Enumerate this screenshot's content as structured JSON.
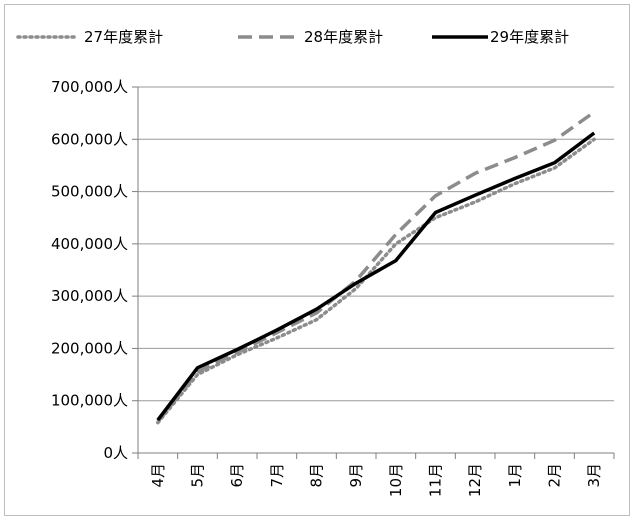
{
  "chart_data": {
    "type": "line",
    "categories": [
      "4月",
      "5月",
      "6月",
      "7月",
      "8月",
      "9月",
      "10月",
      "11月",
      "12月",
      "1月",
      "2月",
      "3月"
    ],
    "y_ticks": [
      "0人",
      "100,000人",
      "200,000人",
      "300,000人",
      "400,000人",
      "500,000人",
      "600,000人",
      "700,000人"
    ],
    "ylim": [
      0,
      700000
    ],
    "grid": true,
    "legend_position": "top",
    "series": [
      {
        "name": "27年度累計",
        "style": "dotted",
        "color": "#8c8c8c",
        "values": [
          58000,
          150000,
          188000,
          220000,
          255000,
          315000,
          400000,
          450000,
          480000,
          515000,
          545000,
          600000
        ]
      },
      {
        "name": "28年度累計",
        "style": "dashed",
        "color": "#8c8c8c",
        "values": [
          60000,
          155000,
          193000,
          230000,
          268000,
          330000,
          418000,
          492000,
          535000,
          565000,
          598000,
          652000
        ]
      },
      {
        "name": "29年度累計",
        "style": "solid",
        "color": "#000000",
        "values": [
          63000,
          163000,
          198000,
          235000,
          275000,
          325000,
          368000,
          460000,
          493000,
          525000,
          555000,
          612000
        ]
      }
    ]
  }
}
